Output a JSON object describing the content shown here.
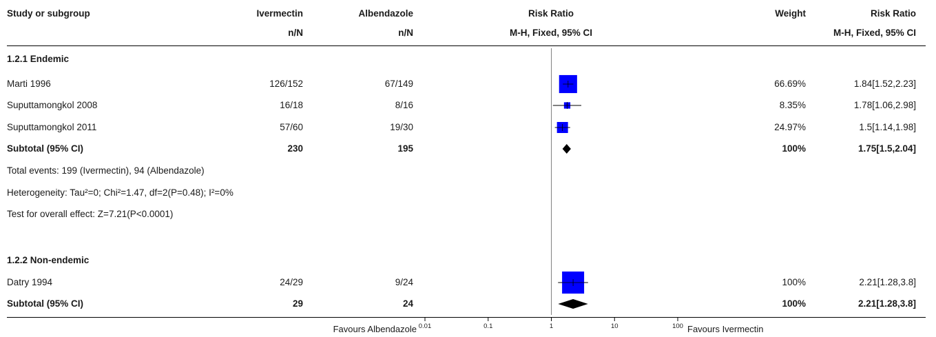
{
  "header": {
    "study": "Study or subgroup",
    "iver": "Ivermectin",
    "iver_sub": "n/N",
    "alb": "Albendazole",
    "alb_sub": "n/N",
    "rr": "Risk Ratio",
    "rr_sub": "M-H, Fixed, 95% CI",
    "weight": "Weight",
    "rr2": "Risk Ratio",
    "rr2_sub": "M-H, Fixed, 95% CI"
  },
  "groups": [
    {
      "title": "1.2.1 Endemic",
      "studies": [
        {
          "name": "Marti 1996",
          "iver": "126/152",
          "alb": "67/149",
          "weight": "66.69%",
          "rr_text": "1.84[1.52,2.23]"
        },
        {
          "name": "Suputtamongkol 2008",
          "iver": "16/18",
          "alb": "8/16",
          "weight": "8.35%",
          "rr_text": "1.78[1.06,2.98]"
        },
        {
          "name": "Suputtamongkol 2011",
          "iver": "57/60",
          "alb": "19/30",
          "weight": "24.97%",
          "rr_text": "1.5[1.14,1.98]"
        }
      ],
      "subtotal": {
        "label": "Subtotal (95% CI)",
        "iver": "230",
        "alb": "195",
        "weight": "100%",
        "rr_text": "1.75[1.5,2.04]"
      },
      "notes": [
        "Total events: 199 (Ivermectin), 94 (Albendazole)",
        "Heterogeneity: Tau²=0; Chi²=1.47, df=2(P=0.48); I²=0%",
        "Test for overall effect: Z=7.21(P<0.0001)"
      ]
    },
    {
      "title": "1.2.2 Non-endemic",
      "studies": [
        {
          "name": "Datry 1994",
          "iver": "24/29",
          "alb": "9/24",
          "weight": "100%",
          "rr_text": "2.21[1.28,3.8]"
        }
      ],
      "subtotal": {
        "label": "Subtotal (95% CI)",
        "iver": "29",
        "alb": "24",
        "weight": "100%",
        "rr_text": "2.21[1.28,3.8]"
      }
    }
  ],
  "footer": {
    "favours_left": "Favours Albendazole",
    "favours_right": "Favours Ivermectin"
  },
  "colors": {
    "marker": "#0000ff",
    "line": "#000000"
  },
  "chart_data": {
    "type": "forest",
    "scale": "log",
    "xlim": [
      0.01,
      100
    ],
    "ticks": [
      "0.01",
      "0.1",
      "1",
      "10",
      "100"
    ],
    "tick_values": [
      0.01,
      0.1,
      1,
      10,
      100
    ],
    "reference_line": 1,
    "studies": [
      {
        "name": "Marti 1996",
        "rr": 1.84,
        "ci": [
          1.52,
          2.23
        ],
        "weight": 66.69
      },
      {
        "name": "Suputtamongkol 2008",
        "rr": 1.78,
        "ci": [
          1.06,
          2.98
        ],
        "weight": 8.35
      },
      {
        "name": "Suputtamongkol 2011",
        "rr": 1.5,
        "ci": [
          1.14,
          1.98
        ],
        "weight": 24.97
      },
      {
        "name": "Subtotal (95% CI)",
        "rr": 1.75,
        "ci": [
          1.5,
          2.04
        ],
        "diamond": true
      },
      {
        "name": "Datry 1994",
        "rr": 2.21,
        "ci": [
          1.28,
          3.8
        ],
        "weight": 100
      },
      {
        "name": "Subtotal (95% CI)",
        "rr": 2.21,
        "ci": [
          1.28,
          3.8
        ],
        "diamond": true
      }
    ]
  }
}
